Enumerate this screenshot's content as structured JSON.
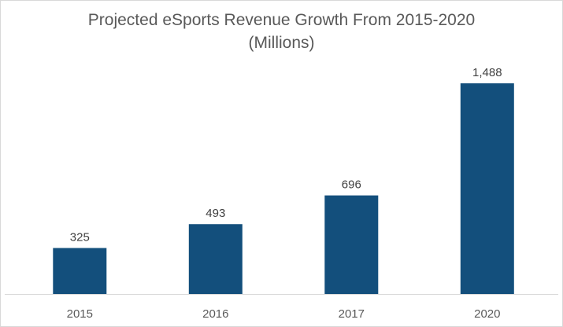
{
  "chart_data": {
    "type": "bar",
    "title": "Projected eSports Revenue Growth From 2015-2020",
    "subtitle": "(Millions)",
    "xlabel": "",
    "ylabel": "",
    "categories": [
      "2015",
      "2016",
      "2017",
      "2020"
    ],
    "values": [
      325,
      493,
      696,
      1488
    ],
    "value_labels": [
      "325",
      "493",
      "696",
      "1,488"
    ],
    "ylim": [
      0,
      1600
    ],
    "grid": false,
    "legend": "none",
    "bar_color": "#134f7c"
  }
}
